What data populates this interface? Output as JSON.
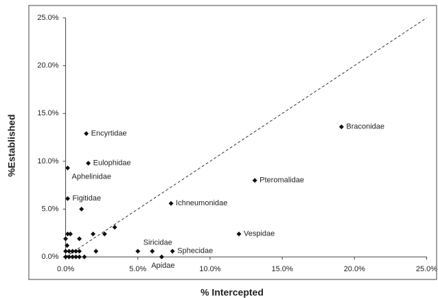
{
  "chart_data": {
    "type": "scatter",
    "xlabel": "% Intercepted",
    "ylabel": "%Established",
    "xlim": [
      -2.5,
      25.5
    ],
    "ylim": [
      -2.5,
      25
    ],
    "xticks": [
      {
        "value": 0,
        "label": "0.0%"
      },
      {
        "value": 5,
        "label": "5.0%"
      },
      {
        "value": 10,
        "label": "10.0%"
      },
      {
        "value": 15,
        "label": "15.0%"
      },
      {
        "value": 20,
        "label": "20.0%"
      },
      {
        "value": 25,
        "label": "25.0%"
      }
    ],
    "yticks": [
      {
        "value": 0,
        "label": "0.0%"
      },
      {
        "value": 5,
        "label": "5.0%"
      },
      {
        "value": 10,
        "label": "10.0%"
      },
      {
        "value": 15,
        "label": "15.0%"
      },
      {
        "value": 20,
        "label": "20.0%"
      },
      {
        "value": 25,
        "label": "25.0%"
      }
    ],
    "color": "#111111",
    "x": [
      1.43,
      1.57,
      0.14,
      0.14,
      19.1,
      13.1,
      7.3,
      12.0,
      6.0,
      7.4,
      6.65,
      1.1,
      5.0,
      0,
      0.14,
      0.33,
      0.1,
      0,
      0.24,
      0.48,
      0.71,
      0.95,
      0,
      0.24,
      0.48,
      0.71,
      0.95,
      1.3,
      0.95,
      1.9,
      2.7,
      3.4,
      2.1
    ],
    "values": [
      12.9,
      9.8,
      9.3,
      6.1,
      13.6,
      8.0,
      5.6,
      2.4,
      0.6,
      0.6,
      0,
      5.0,
      0.6,
      1.9,
      2.4,
      2.4,
      1.2,
      0.6,
      0.6,
      0.6,
      0.6,
      0.6,
      0,
      0,
      0,
      0,
      0,
      0,
      1.9,
      2.4,
      2.4,
      3.1,
      0.6
    ],
    "point_labels": [
      "Encyrtidae",
      "Eulophidae",
      "Aphelinidae",
      "Figitidae",
      "Braconidae",
      "Pteromalidae",
      "Ichneumonidae",
      "Vespidae",
      "Siricidae",
      "Sphecidae",
      "Apidae",
      null,
      null,
      null,
      null,
      null,
      null,
      null,
      null,
      null,
      null,
      null,
      null,
      null,
      null,
      null,
      null,
      null,
      null,
      null,
      null,
      null,
      null
    ]
  }
}
